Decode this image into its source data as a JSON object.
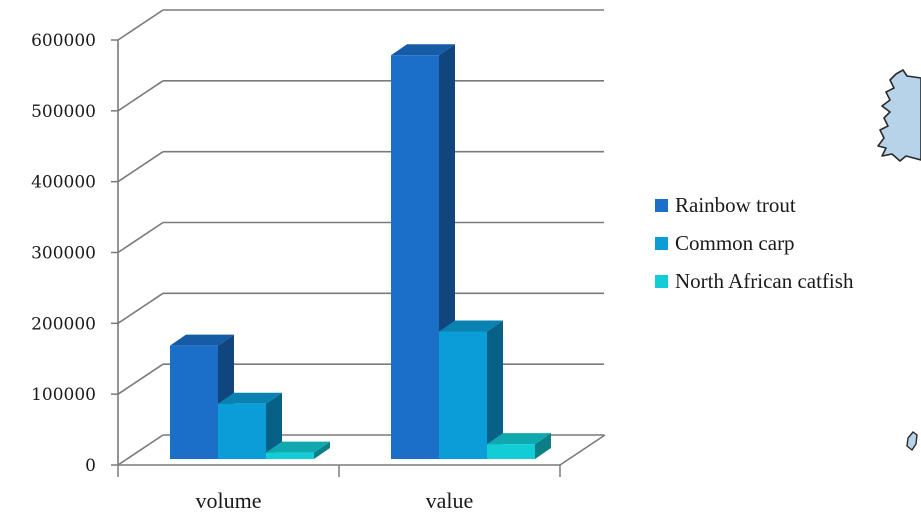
{
  "chart_data": {
    "type": "bar",
    "title": "",
    "xlabel": "",
    "ylabel": "",
    "categories": [
      "volume",
      "value"
    ],
    "series": [
      {
        "name": "Rainbow trout",
        "values": [
          160000,
          570000
        ],
        "color": "#1B6FC9"
      },
      {
        "name": "Common carp",
        "values": [
          78000,
          180000
        ],
        "color": "#0B9DD8"
      },
      {
        "name": "North African catfish",
        "values": [
          9000,
          21000
        ],
        "color": "#12CDD6"
      }
    ],
    "ylim": [
      0,
      600000
    ],
    "yticks": [
      0,
      100000,
      200000,
      300000,
      400000,
      500000,
      600000
    ],
    "grid": true,
    "legend_position": "right",
    "style": "3d-clustered-bar"
  },
  "decorations": {
    "map_icon": "partial-map-of-ireland",
    "map_color": "#B7D3EA"
  }
}
